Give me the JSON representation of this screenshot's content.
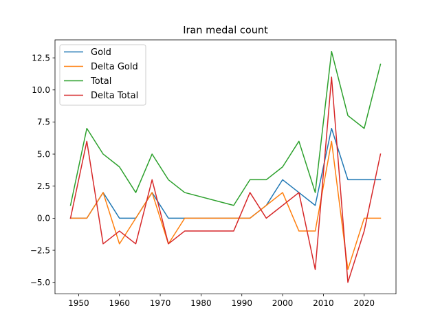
{
  "chart_data": {
    "type": "line",
    "title": "Iran medal count",
    "xlabel": "",
    "ylabel": "",
    "xlim": [
      1944.2,
      2027.8
    ],
    "ylim": [
      -5.9,
      13.9
    ],
    "xticks": [
      1950,
      1960,
      1970,
      1980,
      1990,
      2000,
      2010,
      2020
    ],
    "yticks": [
      -5.0,
      -2.5,
      0.0,
      2.5,
      5.0,
      7.5,
      10.0,
      12.5
    ],
    "ytick_labels": [
      "−5.0",
      "−2.5",
      "0.0",
      "2.5",
      "5.0",
      "7.5",
      "10.0",
      "12.5"
    ],
    "grid": false,
    "legend_position": "upper left",
    "x": [
      1948,
      1952,
      1956,
      1960,
      1964,
      1968,
      1972,
      1976,
      1988,
      1992,
      1996,
      2000,
      2004,
      2008,
      2012,
      2016,
      2020,
      2024
    ],
    "series": [
      {
        "name": "Gold",
        "color": "#1f77b4",
        "values": [
          0,
          0,
          2,
          0,
          0,
          2,
          0,
          0,
          0,
          0,
          1,
          3,
          2,
          1,
          7,
          3,
          3,
          3
        ]
      },
      {
        "name": "Delta Gold",
        "color": "#ff7f0e",
        "values": [
          0,
          0,
          2,
          -2,
          0,
          2,
          -2,
          0,
          0,
          0,
          1,
          2,
          -1,
          -1,
          6,
          -4,
          0,
          0
        ]
      },
      {
        "name": "Total",
        "color": "#2ca02c",
        "values": [
          1,
          7,
          5,
          4,
          2,
          5,
          3,
          2,
          1,
          3,
          3,
          4,
          6,
          2,
          13,
          8,
          7,
          12
        ]
      },
      {
        "name": "Delta Total",
        "color": "#d62728",
        "values": [
          0,
          6,
          -2,
          -1,
          -2,
          3,
          -2,
          -1,
          -1,
          2,
          0,
          1,
          2,
          -4,
          11,
          -5,
          -1,
          5
        ]
      }
    ]
  }
}
